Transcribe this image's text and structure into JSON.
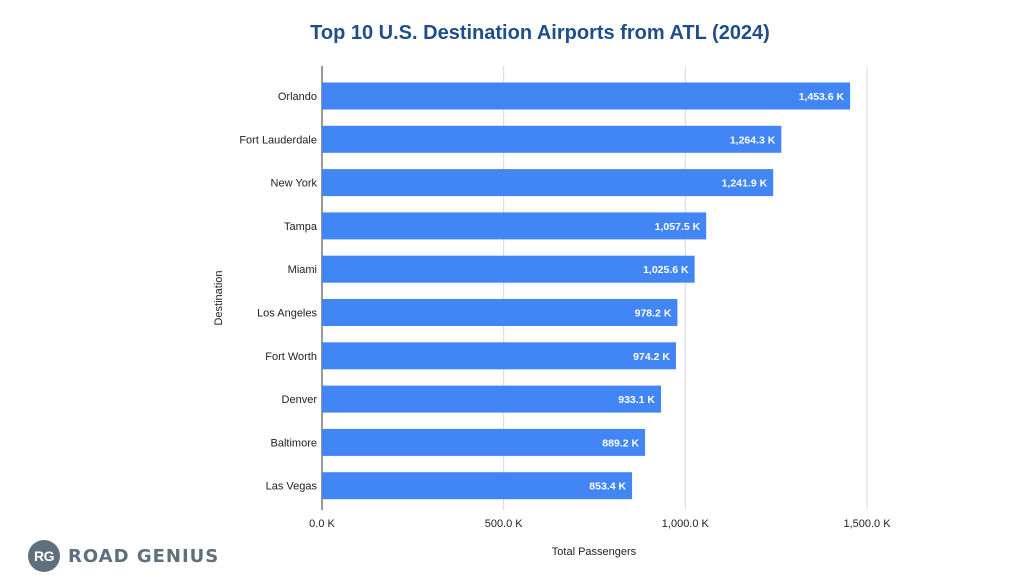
{
  "chart_data": {
    "type": "bar",
    "orientation": "horizontal",
    "title": "Top 10 U.S. Destination Airports from ATL (2024)",
    "xlabel": "Total Passengers",
    "ylabel": "Destination",
    "xlim": [
      0,
      1600
    ],
    "ticks": [
      {
        "value": 0,
        "label": "0.0 K"
      },
      {
        "value": 500,
        "label": "500.0 K"
      },
      {
        "value": 1000,
        "label": "1,000.0 K"
      },
      {
        "value": 1500,
        "label": "1,500.0 K"
      }
    ],
    "grid": true,
    "categories": [
      "Orlando",
      "Fort Lauderdale",
      "New York",
      "Tampa",
      "Miami",
      "Los Angeles",
      "Fort Worth",
      "Denver",
      "Baltimore",
      "Las Vegas"
    ],
    "values": [
      1453.6,
      1264.3,
      1241.9,
      1057.5,
      1025.6,
      978.2,
      974.2,
      933.1,
      889.2,
      853.4
    ],
    "data_labels": [
      "1,453.6 K",
      "1,264.3 K",
      "1,241.9 K",
      "1,057.5 K",
      "1,025.6 K",
      "978.2 K",
      "974.2 K",
      "933.1 K",
      "889.2 K",
      "853.4 K"
    ],
    "bar_color": "#4285f4"
  },
  "brand": {
    "badge": "RG",
    "name": "ROAD GENIUS"
  }
}
